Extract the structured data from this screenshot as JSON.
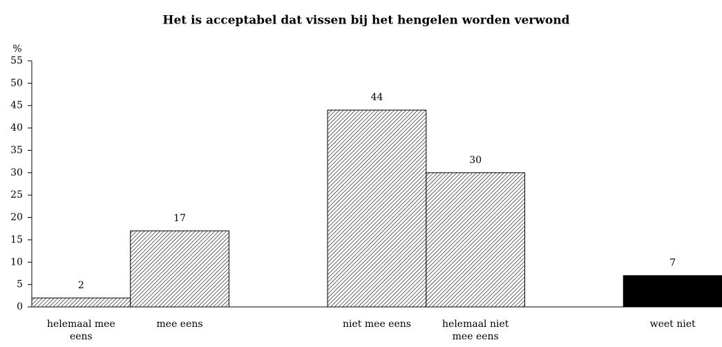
{
  "chart_data": {
    "type": "bar",
    "title": "Het is acceptabel dat vissen bij het hengelen worden verwond",
    "y_label": "%",
    "categories": [
      "helemaal mee eens",
      "mee eens",
      null,
      "niet mee eens",
      "helemaal niet mee eens",
      null,
      "weet niet"
    ],
    "values": [
      2,
      17,
      null,
      44,
      30,
      null,
      7
    ],
    "hatched": [
      true,
      true,
      null,
      true,
      true,
      null,
      false
    ],
    "color": "#000000",
    "ylim": [
      0,
      55
    ],
    "yticks": [
      0,
      5,
      10,
      15,
      20,
      25,
      30,
      35,
      40,
      45,
      50,
      55
    ],
    "grid": false
  }
}
